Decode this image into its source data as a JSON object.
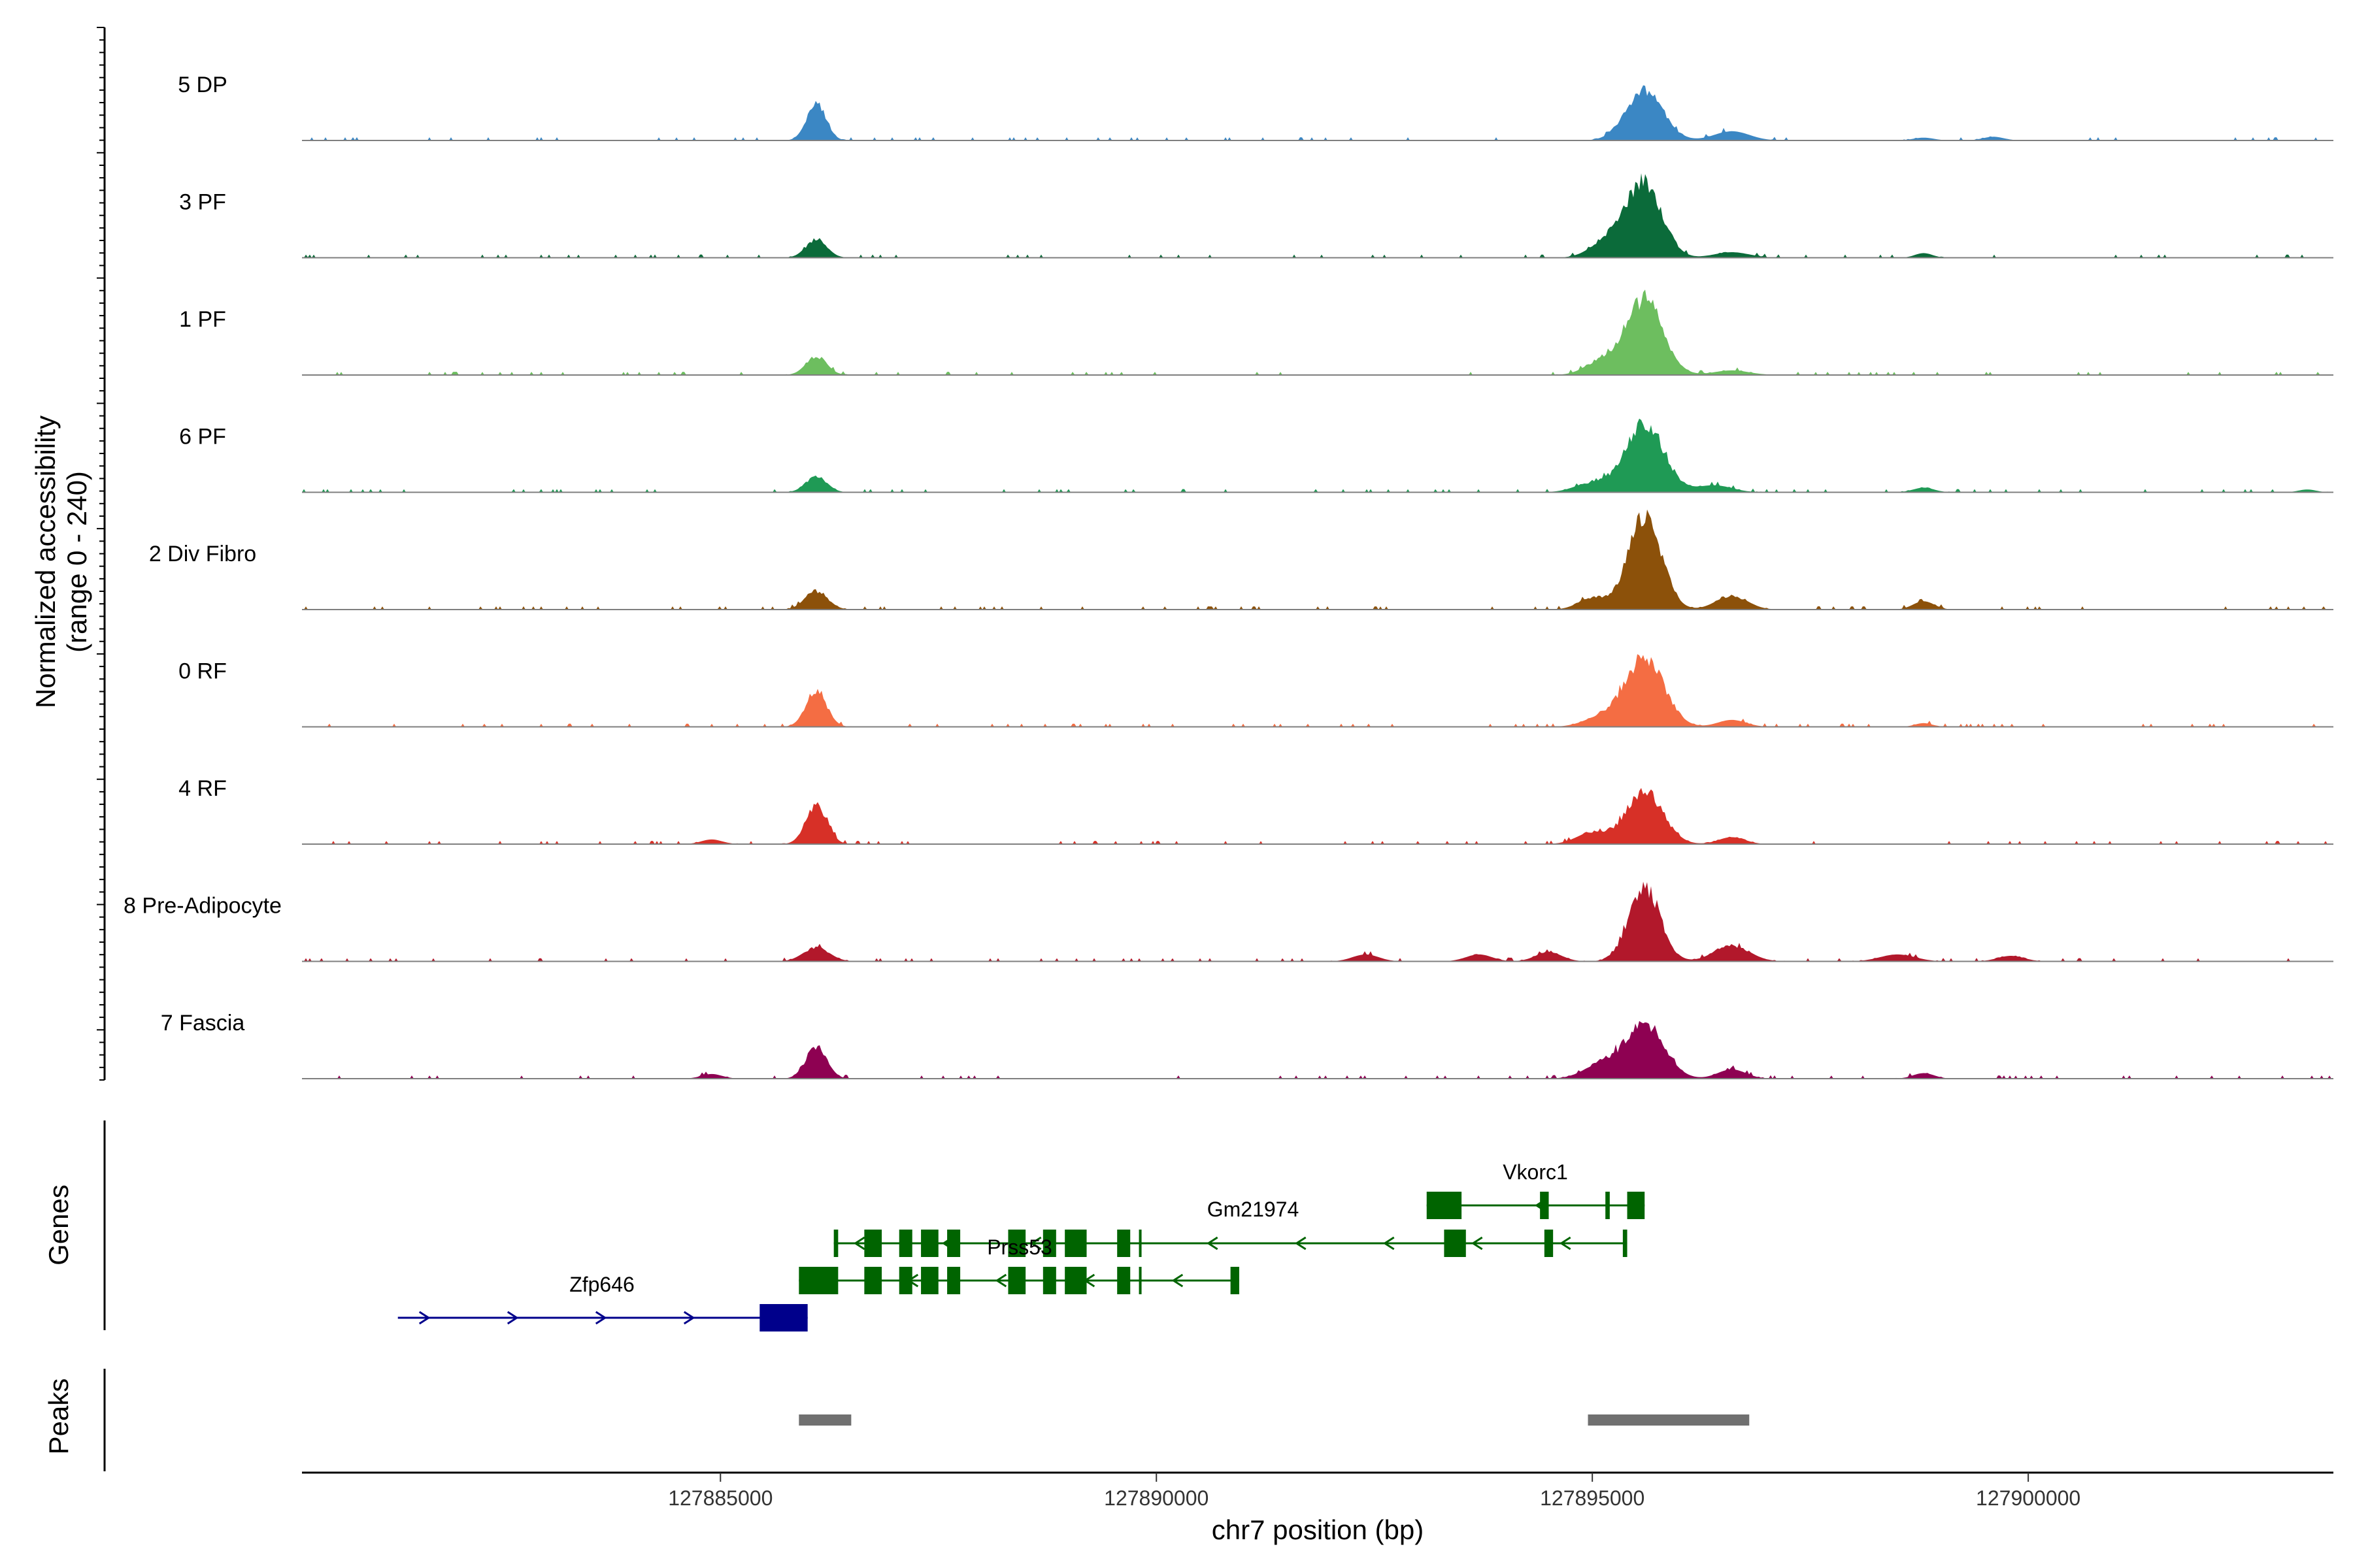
{
  "chart_data": {
    "type": "area",
    "chromosome": "chr7",
    "xlim": [
      127880200,
      127903500
    ],
    "xlabel": "chr7 position (bp)",
    "x_ticks": [
      127885000,
      127890000,
      127895000,
      127900000
    ],
    "x_tick_labels": [
      "127885000",
      "127890000",
      "127895000",
      "127900000"
    ],
    "coverage_ylabel_line1": "Normalized accessibility",
    "coverage_ylabel_line2": "(range 0 - 240)",
    "ylim": [
      0,
      240
    ],
    "genes_ylabel": "Genes",
    "peaks_ylabel": "Peaks",
    "series": [
      {
        "name": "5 DP",
        "color": "#3B87C4",
        "peaks": [
          [
            127886100,
            80,
            110
          ],
          [
            127895600,
            110,
            210
          ],
          [
            127896600,
            20,
            200
          ],
          [
            127899600,
            8,
            120
          ],
          [
            127898800,
            6,
            120
          ]
        ]
      },
      {
        "name": "3 PF",
        "color": "#0B6B3A",
        "peaks": [
          [
            127886100,
            40,
            120
          ],
          [
            127895600,
            160,
            200
          ],
          [
            127895200,
            40,
            200
          ],
          [
            127896600,
            12,
            200
          ],
          [
            127898800,
            10,
            100
          ]
        ]
      },
      {
        "name": "1 PF",
        "color": "#6DBE5F",
        "peaks": [
          [
            127886100,
            40,
            120
          ],
          [
            127895600,
            165,
            210
          ],
          [
            127895100,
            30,
            180
          ],
          [
            127896600,
            10,
            200
          ]
        ]
      },
      {
        "name": "6 PF",
        "color": "#1F9A55",
        "peaks": [
          [
            127886100,
            35,
            120
          ],
          [
            127895600,
            150,
            220
          ],
          [
            127895000,
            20,
            200
          ],
          [
            127896400,
            15,
            200
          ],
          [
            127898800,
            10,
            120
          ],
          [
            127903200,
            6,
            100
          ]
        ]
      },
      {
        "name": "2 Div Fibro",
        "color": "#8C510A",
        "peaks": [
          [
            127886100,
            40,
            130
          ],
          [
            127895600,
            205,
            190
          ],
          [
            127895000,
            25,
            160
          ],
          [
            127896600,
            30,
            180
          ],
          [
            127898800,
            18,
            120
          ]
        ]
      },
      {
        "name": "0 RF",
        "color": "#F46D43",
        "peaks": [
          [
            127886100,
            75,
            120
          ],
          [
            127895600,
            150,
            220
          ],
          [
            127895100,
            20,
            200
          ],
          [
            127896600,
            15,
            160
          ],
          [
            127898800,
            8,
            100
          ]
        ]
      },
      {
        "name": "4 RF",
        "color": "#D73027",
        "peaks": [
          [
            127886100,
            85,
            120
          ],
          [
            127895600,
            115,
            210
          ],
          [
            127895000,
            25,
            180
          ],
          [
            127896600,
            15,
            150
          ],
          [
            127884900,
            10,
            120
          ]
        ]
      },
      {
        "name": "8 Pre-Adipocyte",
        "color": "#B2182B",
        "peaks": [
          [
            127886100,
            30,
            150
          ],
          [
            127895600,
            160,
            180
          ],
          [
            127896600,
            35,
            200
          ],
          [
            127894500,
            20,
            150
          ],
          [
            127893700,
            15,
            150
          ],
          [
            127898500,
            15,
            200
          ],
          [
            127899800,
            12,
            150
          ],
          [
            127892400,
            15,
            150
          ]
        ]
      },
      {
        "name": "7 Fascia",
        "color": "#8E0152",
        "peaks": [
          [
            127886100,
            70,
            120
          ],
          [
            127895600,
            120,
            220
          ],
          [
            127895100,
            30,
            200
          ],
          [
            127896600,
            20,
            160
          ],
          [
            127898800,
            12,
            120
          ],
          [
            127884900,
            10,
            120
          ]
        ]
      }
    ],
    "genes": [
      {
        "name": "Vkorc1",
        "color": "#006400",
        "row": 0,
        "strand": "-",
        "start": 127893100,
        "end": 127895600,
        "exons": [
          [
            127893100,
            127893500
          ],
          [
            127894400,
            127894500
          ],
          [
            127895150,
            127895200
          ],
          [
            127895400,
            127895600
          ]
        ]
      },
      {
        "name": "Gm21974",
        "color": "#006400",
        "row": 1,
        "strand": "-",
        "start": 127886300,
        "end": 127895400,
        "exons": [
          [
            127886300,
            127886350
          ],
          [
            127886650,
            127886850
          ],
          [
            127887050,
            127887200
          ],
          [
            127887300,
            127887500
          ],
          [
            127887600,
            127887750
          ],
          [
            127888300,
            127888500
          ],
          [
            127888700,
            127888850
          ],
          [
            127888950,
            127889200
          ],
          [
            127889550,
            127889700
          ],
          [
            127889800,
            127889830
          ],
          [
            127893300,
            127893550
          ],
          [
            127894450,
            127894550
          ],
          [
            127895350,
            127895400
          ]
        ]
      },
      {
        "name": "Prss53",
        "color": "#006400",
        "row": 2,
        "strand": "-",
        "start": 127885900,
        "end": 127890950,
        "exons": [
          [
            127885900,
            127886350
          ],
          [
            127886650,
            127886850
          ],
          [
            127887050,
            127887200
          ],
          [
            127887300,
            127887500
          ],
          [
            127887600,
            127887750
          ],
          [
            127888300,
            127888500
          ],
          [
            127888700,
            127888850
          ],
          [
            127888950,
            127889200
          ],
          [
            127889550,
            127889700
          ],
          [
            127889800,
            127889830
          ],
          [
            127890850,
            127890950
          ]
        ]
      },
      {
        "name": "Zfp646",
        "color": "#00008B",
        "row": 3,
        "strand": "+",
        "start": 127881300,
        "end": 127886000,
        "exons": [
          [
            127885450,
            127886000
          ]
        ]
      }
    ],
    "peak_regions": [
      [
        127885900,
        127886500
      ],
      [
        127894950,
        127896800
      ]
    ]
  }
}
